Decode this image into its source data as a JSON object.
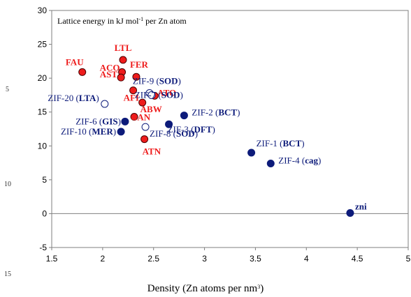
{
  "line_numbers": [
    "5",
    "10",
    "15"
  ],
  "chart_data": {
    "type": "scatter",
    "title": "",
    "annotation": {
      "main": "Lattice energy in kJ mol",
      "sup": "-1",
      "tail": " per Zn atom"
    },
    "xlabel": {
      "main": "Density (Zn atoms per nm",
      "sup": "3",
      "tail": ")"
    },
    "ylabel": "",
    "xlim": [
      1.5,
      5
    ],
    "ylim": [
      -5,
      30
    ],
    "xticks": [
      "1.5",
      "2",
      "2.5",
      "3",
      "3.5",
      "4",
      "4.5",
      "5"
    ],
    "yticks": [
      "-5",
      "0",
      "5",
      "10",
      "15",
      "20",
      "25",
      "30"
    ],
    "grid": false,
    "colors": {
      "red": "#ee1c1c",
      "navy": "#0d1b7a"
    },
    "points": [
      {
        "label": "FAU",
        "name": "",
        "code": "",
        "x": 1.8,
        "y": 20.9,
        "style": "red"
      },
      {
        "label": "LTL",
        "name": "",
        "code": "",
        "x": 2.2,
        "y": 22.7,
        "style": "red"
      },
      {
        "label": "ACO",
        "name": "",
        "code": "",
        "x": 2.19,
        "y": 20.9,
        "style": "red"
      },
      {
        "label": "AST",
        "name": "",
        "code": "",
        "x": 2.18,
        "y": 20.1,
        "style": "red"
      },
      {
        "label": "FER",
        "name": "",
        "code": "",
        "x": 2.33,
        "y": 20.2,
        "style": "red"
      },
      {
        "label": "AFI",
        "name": "",
        "code": "",
        "x": 2.3,
        "y": 18.2,
        "style": "red"
      },
      {
        "label": "ATO",
        "name": "",
        "code": "",
        "x": 2.51,
        "y": 17.4,
        "style": "red"
      },
      {
        "label": "ABW",
        "name": "",
        "code": "",
        "x": 2.39,
        "y": 16.4,
        "style": "red"
      },
      {
        "label": "CAN",
        "name": "",
        "code": "",
        "x": 2.31,
        "y": 14.3,
        "style": "red"
      },
      {
        "label": "ATN",
        "name": "",
        "code": "",
        "x": 2.41,
        "y": 11.0,
        "style": "red"
      },
      {
        "label": "",
        "name": "ZIF-9 (",
        "code": "SOD",
        "x": 2.46,
        "y": 17.8,
        "style": "open"
      },
      {
        "label": "",
        "name": "ZIF-7 (",
        "code": "SOD",
        "x": 2.48,
        "y": 17.5,
        "style": "open"
      },
      {
        "label": "",
        "name": "ZIF-20 (",
        "code": "LTA",
        "x": 2.02,
        "y": 16.2,
        "style": "open"
      },
      {
        "label": "",
        "name": "ZIF-8 (",
        "code": "SOD",
        "x": 2.42,
        "y": 12.8,
        "style": "open"
      },
      {
        "label": "",
        "name": "ZIF-6 (",
        "code": "GIS",
        "x": 2.22,
        "y": 13.6,
        "style": "navy"
      },
      {
        "label": "",
        "name": "ZIF-10 (",
        "code": "MER",
        "x": 2.18,
        "y": 12.1,
        "style": "navy"
      },
      {
        "label": "",
        "name": "ZIF-2 (",
        "code": "BCT",
        "x": 2.8,
        "y": 14.5,
        "style": "navy"
      },
      {
        "label": "",
        "name": "ZIF-3 (",
        "code": "DFT",
        "x": 2.65,
        "y": 13.2,
        "style": "navy"
      },
      {
        "label": "",
        "name": "ZIF-1 (",
        "code": "BCT",
        "x": 3.46,
        "y": 9.0,
        "style": "navy"
      },
      {
        "label": "",
        "name": "ZIF-4 (",
        "code": "cag",
        "x": 3.65,
        "y": 7.4,
        "style": "navy"
      },
      {
        "label": "",
        "name": "",
        "code": "zni",
        "x": 4.43,
        "y": 0.1,
        "style": "navy"
      }
    ]
  }
}
